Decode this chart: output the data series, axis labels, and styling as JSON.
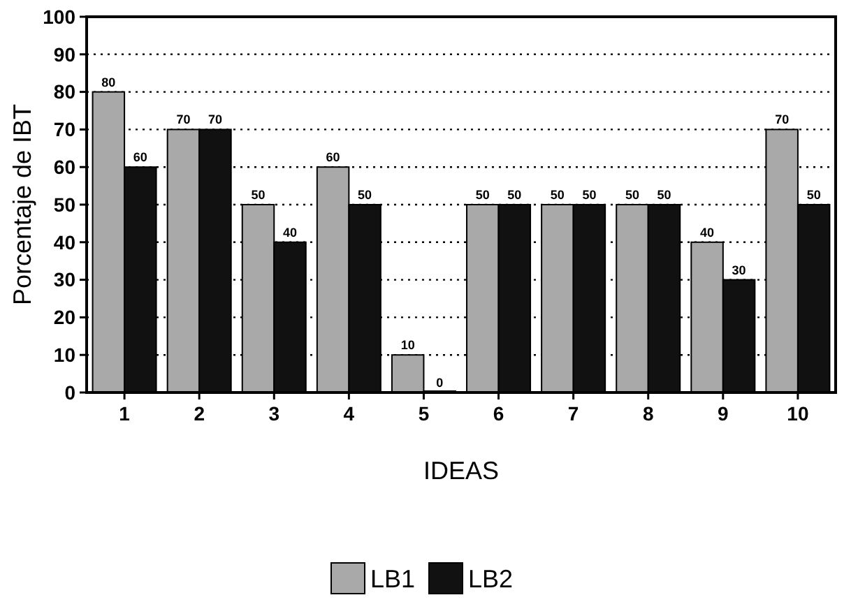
{
  "chart_data": {
    "type": "bar",
    "xlabel": "IDEAS",
    "ylabel": "Porcentaje de IBT",
    "categories": [
      "1",
      "2",
      "3",
      "4",
      "5",
      "6",
      "7",
      "8",
      "9",
      "10"
    ],
    "series": [
      {
        "name": "LB1",
        "color": "#a9a9a9",
        "values": [
          80,
          70,
          50,
          60,
          10,
          50,
          50,
          50,
          40,
          70
        ]
      },
      {
        "name": "LB2",
        "color": "#111111",
        "values": [
          60,
          70,
          40,
          50,
          0,
          50,
          50,
          50,
          30,
          50
        ]
      }
    ],
    "ylim": [
      0,
      100
    ],
    "yticks": [
      0,
      10,
      20,
      30,
      40,
      50,
      60,
      70,
      80,
      90,
      100
    ],
    "grid": "y",
    "legend": "bottom",
    "data_labels": true
  }
}
